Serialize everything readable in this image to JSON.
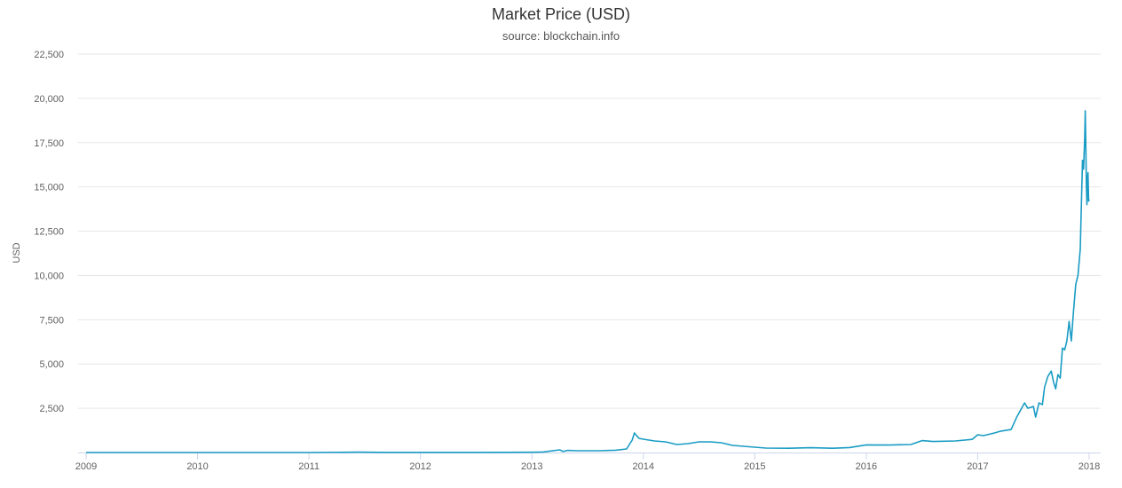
{
  "chart_data": {
    "type": "line",
    "title": "Market Price (USD)",
    "subtitle": "source: blockchain.info",
    "xlabel": "",
    "ylabel": "USD",
    "xlim": [
      2009.0,
      2018.0
    ],
    "ylim": [
      0,
      22500
    ],
    "yticks": [
      2500,
      5000,
      7500,
      10000,
      12500,
      15000,
      17500,
      20000,
      22500
    ],
    "ytick_labels": [
      "2,500",
      "5,000",
      "7,500",
      "10,000",
      "12,500",
      "15,000",
      "17,500",
      "20,000",
      "22,500"
    ],
    "xticks": [
      2009,
      2010,
      2011,
      2012,
      2013,
      2014,
      2015,
      2016,
      2017,
      2018
    ],
    "xtick_labels": [
      "2009",
      "2010",
      "2011",
      "2012",
      "2013",
      "2014",
      "2015",
      "2016",
      "2017",
      "2018"
    ],
    "grid": true,
    "legend": "none",
    "line_color": "#1a9cc4",
    "series": [
      {
        "x": [
          2009.0,
          2010.0,
          2010.5,
          2011.0,
          2011.45,
          2011.7,
          2012.0,
          2012.5,
          2013.0,
          2013.1,
          2013.25,
          2013.28,
          2013.32,
          2013.4,
          2013.6,
          2013.75,
          2013.85,
          2013.9,
          2013.92,
          2013.96,
          2014.0,
          2014.1,
          2014.2,
          2014.3,
          2014.4,
          2014.5,
          2014.6,
          2014.7,
          2014.8,
          2014.9,
          2015.0,
          2015.1,
          2015.3,
          2015.5,
          2015.7,
          2015.85,
          2016.0,
          2016.2,
          2016.4,
          2016.5,
          2016.6,
          2016.8,
          2016.95,
          2017.0,
          2017.05,
          2017.15,
          2017.2,
          2017.3,
          2017.35,
          2017.42,
          2017.45,
          2017.5,
          2017.52,
          2017.55,
          2017.58,
          2017.6,
          2017.63,
          2017.66,
          2017.68,
          2017.7,
          2017.72,
          2017.74,
          2017.76,
          2017.78,
          2017.8,
          2017.82,
          2017.84,
          2017.86,
          2017.88,
          2017.9,
          2017.92,
          2017.94,
          2017.95,
          2017.96,
          2017.965,
          2017.97,
          2017.975,
          2017.98,
          2017.985,
          2017.99,
          2017.995,
          2018.0
        ],
        "y": [
          0,
          0.1,
          0.1,
          0.3,
          20,
          5,
          5,
          7,
          13,
          30,
          150,
          60,
          120,
          100,
          100,
          130,
          200,
          700,
          1100,
          800,
          750,
          650,
          600,
          450,
          500,
          600,
          600,
          550,
          400,
          350,
          300,
          250,
          240,
          270,
          240,
          280,
          430,
          420,
          450,
          670,
          620,
          650,
          740,
          1000,
          950,
          1100,
          1200,
          1300,
          2000,
          2800,
          2500,
          2600,
          2000,
          2800,
          2700,
          3700,
          4300,
          4600,
          4000,
          3600,
          4400,
          4200,
          5900,
          5800,
          6300,
          7400,
          6300,
          8000,
          9500,
          10000,
          11500,
          16500,
          16000,
          17800,
          19300,
          17500,
          15000,
          14000,
          15500,
          15800,
          14200,
          14300
        ]
      }
    ]
  }
}
